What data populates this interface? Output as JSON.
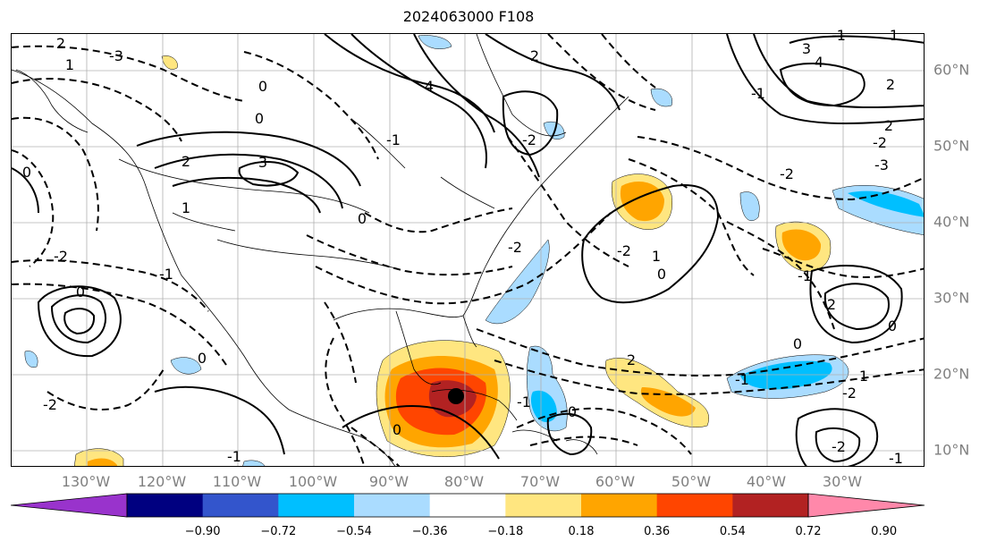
{
  "title": "2024063000 F108",
  "lon_labels": [
    "130°W",
    "120°W",
    "110°W",
    "100°W",
    "90°W",
    "80°W",
    "70°W",
    "60°W",
    "50°W",
    "40°W",
    "30°W"
  ],
  "lat_labels": [
    "60°N",
    "50°N",
    "40°N",
    "30°N",
    "20°N",
    "10°N"
  ],
  "colorbar": {
    "ticks": [
      "−0.90",
      "−0.72",
      "−0.54",
      "−0.36",
      "−0.18",
      "0.18",
      "0.36",
      "0.54",
      "0.72",
      "0.90"
    ],
    "colors": [
      "#9933cc",
      "#000080",
      "#3355cc",
      "#00bfff",
      "#aadcff",
      "#ffffff",
      "#ffe680",
      "#ffa500",
      "#ff4500",
      "#b22222",
      "#ff88aa"
    ]
  },
  "contour_labels": [
    "2",
    "1",
    "0",
    "3",
    "4",
    "-2",
    "-1",
    "-3",
    "0",
    "2",
    "1",
    "0",
    "-2",
    "-1",
    "0",
    "-2",
    "-1",
    "0",
    "3",
    "4",
    "-1",
    "-2",
    "-3",
    "0",
    "1",
    "-2",
    "-1",
    "0",
    "2",
    "1",
    "0",
    "-2",
    "-2",
    "2",
    "-1",
    "-2",
    "0",
    "-1",
    "0",
    "2",
    "1",
    "-1",
    "2",
    "-2",
    "2",
    "0",
    "-1"
  ],
  "marker": {
    "name": "storm-center",
    "color": "#000000"
  }
}
